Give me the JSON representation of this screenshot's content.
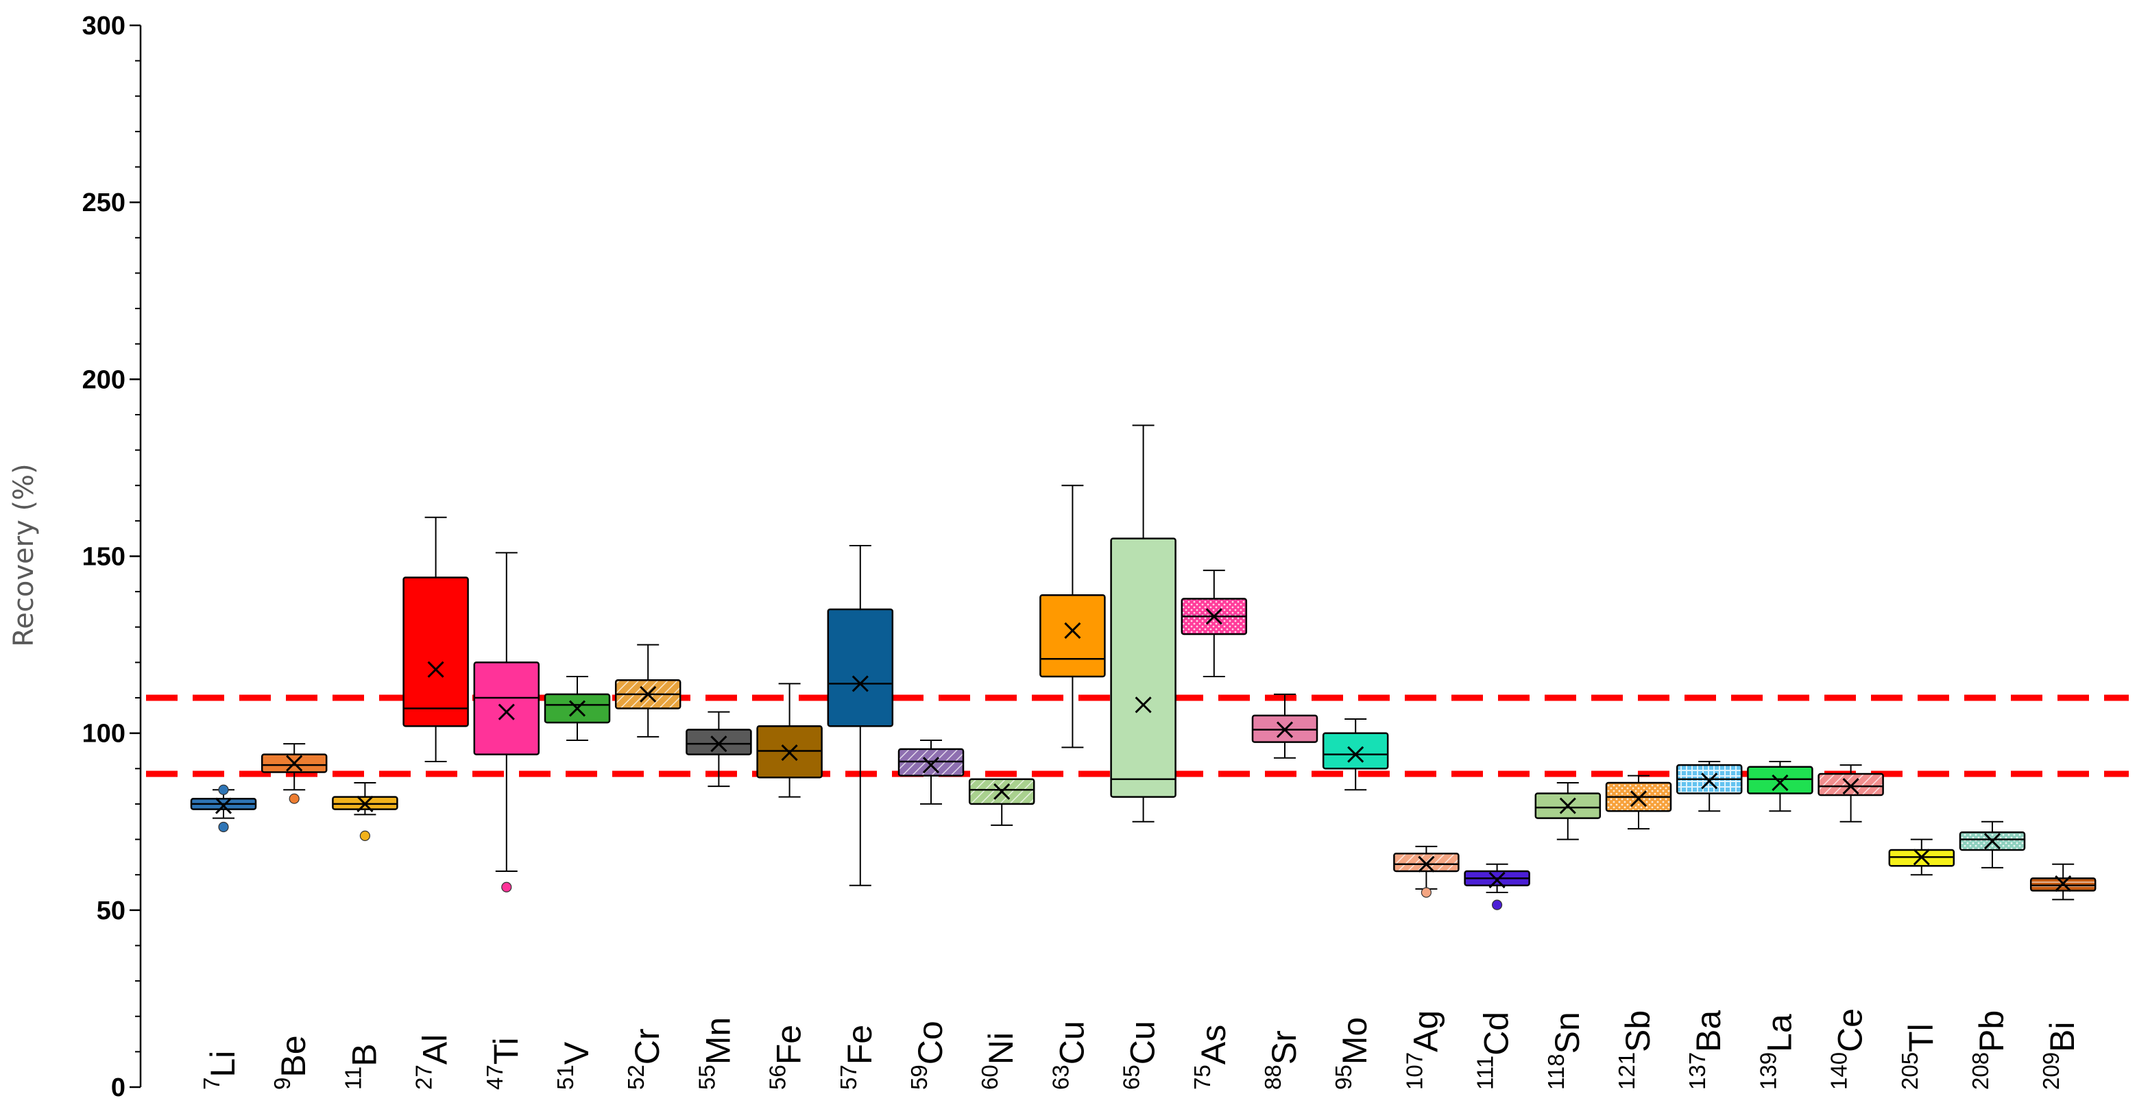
{
  "chart_data": {
    "type": "box",
    "title": "",
    "xlabel": "",
    "ylabel": "Recovery (%)",
    "ylim": [
      0,
      300
    ],
    "yticks": [
      0,
      50,
      100,
      150,
      200,
      250,
      300
    ],
    "reference_lines": [
      110,
      88.5
    ],
    "reference_line_color": "#ff0000",
    "grid": false,
    "categories": [
      {
        "mass": "7",
        "element": "Li",
        "color": "#2e75b6",
        "pattern": "solid",
        "min": 76,
        "q1": 78.5,
        "median": 80,
        "q3": 81.5,
        "max": 84,
        "mean": 79.5,
        "outliers": [
          73.5,
          84
        ]
      },
      {
        "mass": "9",
        "element": "Be",
        "color": "#ed7d31",
        "pattern": "solid",
        "min": 84,
        "q1": 89,
        "median": 91,
        "q3": 94,
        "max": 97,
        "mean": 91.5,
        "outliers": [
          81.5
        ]
      },
      {
        "mass": "11",
        "element": "B",
        "color": "#f2b21c",
        "pattern": "solid",
        "min": 77,
        "q1": 78.5,
        "median": 80,
        "q3": 82,
        "max": 86,
        "mean": 80,
        "outliers": [
          71
        ]
      },
      {
        "mass": "27",
        "element": "Al",
        "color": "#ff0000",
        "pattern": "solid",
        "min": 92,
        "q1": 102,
        "median": 107,
        "q3": 144,
        "max": 161,
        "mean": 118,
        "outliers": []
      },
      {
        "mass": "47",
        "element": "Ti",
        "color": "#ff3399",
        "pattern": "solid",
        "min": 61,
        "q1": 94,
        "median": 110,
        "q3": 120,
        "max": 151,
        "mean": 106,
        "outliers": [
          56.5
        ]
      },
      {
        "mass": "51",
        "element": "V",
        "color": "#3aaa35",
        "pattern": "solid",
        "min": 98,
        "q1": 103,
        "median": 108,
        "q3": 111,
        "max": 116,
        "mean": 107,
        "outliers": []
      },
      {
        "mass": "52",
        "element": "Cr",
        "color": "#e8a33d",
        "pattern": "hatch",
        "min": 99,
        "q1": 107,
        "median": 111,
        "q3": 115,
        "max": 125,
        "mean": 111,
        "outliers": []
      },
      {
        "mass": "55",
        "element": "Mn",
        "color": "#595959",
        "pattern": "solid",
        "min": 85,
        "q1": 94,
        "median": 97,
        "q3": 101,
        "max": 106,
        "mean": 97,
        "outliers": []
      },
      {
        "mass": "56",
        "element": "Fe",
        "color": "#9c6500",
        "pattern": "solid",
        "min": 82,
        "q1": 87.5,
        "median": 95,
        "q3": 102,
        "max": 114,
        "mean": 94.5,
        "outliers": []
      },
      {
        "mass": "57",
        "element": "Fe",
        "color": "#0b5d94",
        "pattern": "solid",
        "min": 57,
        "q1": 102,
        "median": 114,
        "q3": 135,
        "max": 153,
        "mean": 114,
        "outliers": []
      },
      {
        "mass": "59",
        "element": "Co",
        "color": "#8e6fb0",
        "pattern": "hatch",
        "min": 80,
        "q1": 88,
        "median": 92,
        "q3": 95.5,
        "max": 98,
        "mean": 91,
        "outliers": []
      },
      {
        "mass": "60",
        "element": "Ni",
        "color": "#a9d18e",
        "pattern": "hatch",
        "min": 74,
        "q1": 80,
        "median": 84,
        "q3": 87,
        "max": 87,
        "mean": 83.5,
        "outliers": []
      },
      {
        "mass": "63",
        "element": "Cu",
        "color": "#ff9900",
        "pattern": "solid",
        "min": 96,
        "q1": 116,
        "median": 121,
        "q3": 139,
        "max": 170,
        "mean": 129,
        "outliers": []
      },
      {
        "mass": "65",
        "element": "Cu",
        "color": "#b8e0b0",
        "pattern": "solid",
        "min": 75,
        "q1": 82,
        "median": 87,
        "q3": 155,
        "max": 187,
        "mean": 108,
        "outliers": []
      },
      {
        "mass": "75",
        "element": "As",
        "color": "#ff3c9a",
        "pattern": "dots",
        "min": 116,
        "q1": 128,
        "median": 133,
        "q3": 138,
        "max": 146,
        "mean": 133,
        "outliers": []
      },
      {
        "mass": "88",
        "element": "Sr",
        "color": "#e680a6",
        "pattern": "solid",
        "min": 93,
        "q1": 97.5,
        "median": 101,
        "q3": 105,
        "max": 111,
        "mean": 101,
        "outliers": []
      },
      {
        "mass": "95",
        "element": "Mo",
        "color": "#16e0b5",
        "pattern": "solid",
        "min": 84,
        "q1": 90,
        "median": 94,
        "q3": 100,
        "max": 104,
        "mean": 94,
        "outliers": []
      },
      {
        "mass": "107",
        "element": "Ag",
        "color": "#f4a582",
        "pattern": "hatch",
        "min": 56,
        "q1": 61,
        "median": 63,
        "q3": 66,
        "max": 68,
        "mean": 63,
        "outliers": [
          55
        ]
      },
      {
        "mass": "111",
        "element": "Cd",
        "color": "#4b1fd6",
        "pattern": "solid",
        "min": 55,
        "q1": 57,
        "median": 59,
        "q3": 61,
        "max": 63,
        "mean": 58.5,
        "outliers": [
          51.5
        ]
      },
      {
        "mass": "118",
        "element": "Sn",
        "color": "#a9d18e",
        "pattern": "solid",
        "min": 70,
        "q1": 76,
        "median": 79,
        "q3": 83,
        "max": 86,
        "mean": 79.5,
        "outliers": []
      },
      {
        "mass": "121",
        "element": "Sb",
        "color": "#f7a13b",
        "pattern": "dots",
        "min": 73,
        "q1": 78,
        "median": 82,
        "q3": 86,
        "max": 88,
        "mean": 81.5,
        "outliers": []
      },
      {
        "mass": "137",
        "element": "Ba",
        "color": "#64c3f0",
        "pattern": "grid",
        "min": 78,
        "q1": 83,
        "median": 87,
        "q3": 91,
        "max": 92,
        "mean": 86.5,
        "outliers": []
      },
      {
        "mass": "139",
        "element": "La",
        "color": "#1fe051",
        "pattern": "solid",
        "min": 78,
        "q1": 83,
        "median": 87,
        "q3": 90.5,
        "max": 92,
        "mean": 86,
        "outliers": []
      },
      {
        "mass": "140",
        "element": "Ce",
        "color": "#f28e8e",
        "pattern": "hatch",
        "min": 75,
        "q1": 82.5,
        "median": 85,
        "q3": 88.5,
        "max": 91,
        "mean": 85,
        "outliers": []
      },
      {
        "mass": "205",
        "element": "Tl",
        "color": "#f5f01a",
        "pattern": "solid",
        "min": 60,
        "q1": 62.5,
        "median": 65,
        "q3": 67,
        "max": 70,
        "mean": 65,
        "outliers": []
      },
      {
        "mass": "208",
        "element": "Pb",
        "color": "#8fd1bf",
        "pattern": "dots",
        "min": 62,
        "q1": 67,
        "median": 70,
        "q3": 72,
        "max": 75,
        "mean": 69.5,
        "outliers": []
      },
      {
        "mass": "209",
        "element": "Bi",
        "color": "#c55a11",
        "pattern": "hlines",
        "min": 53,
        "q1": 55.5,
        "median": 57,
        "q3": 59,
        "max": 63,
        "mean": 57.5,
        "outliers": []
      }
    ]
  }
}
